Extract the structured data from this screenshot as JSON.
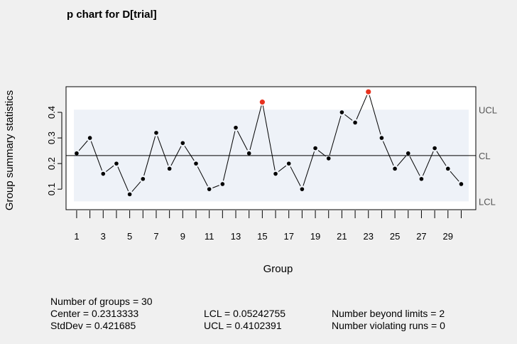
{
  "chart_data": {
    "type": "line",
    "title": "p chart for D[trial]",
    "xlabel": "Group",
    "ylabel": "Group summary statistics",
    "x": [
      1,
      2,
      3,
      4,
      5,
      6,
      7,
      8,
      9,
      10,
      11,
      12,
      13,
      14,
      15,
      16,
      17,
      18,
      19,
      20,
      21,
      22,
      23,
      24,
      25,
      26,
      27,
      28,
      29,
      30
    ],
    "values": [
      0.24,
      0.3,
      0.16,
      0.2,
      0.08,
      0.14,
      0.32,
      0.18,
      0.28,
      0.2,
      0.1,
      0.12,
      0.34,
      0.24,
      0.44,
      0.16,
      0.2,
      0.1,
      0.26,
      0.22,
      0.4,
      0.36,
      0.48,
      0.3,
      0.18,
      0.24,
      0.14,
      0.26,
      0.18,
      0.12
    ],
    "out_of_limits_groups": [
      15,
      23
    ],
    "center": 0.2313333,
    "ucl": 0.4102391,
    "lcl": 0.05242755,
    "ylim": [
      0.02,
      0.5
    ],
    "xlim": [
      0.2,
      31.1
    ],
    "yticks": [
      "0.1",
      "0.2",
      "0.3",
      "0.4"
    ],
    "ytick_values": [
      0.1,
      0.2,
      0.3,
      0.4
    ],
    "xtick_labels": [
      "1",
      "3",
      "5",
      "7",
      "9",
      "11",
      "13",
      "15",
      "17",
      "19",
      "21",
      "23",
      "25",
      "27",
      "29"
    ],
    "xtick_values": [
      1,
      3,
      5,
      7,
      9,
      11,
      13,
      15,
      17,
      19,
      21,
      23,
      25,
      27,
      29
    ],
    "limit_labels": {
      "ucl": "UCL",
      "cl": "CL",
      "lcl": "LCL"
    },
    "colors": {
      "point": "#000000",
      "violation": "#e8321e",
      "band": "#eef2f8",
      "panel": "#ffffff"
    }
  },
  "stats": {
    "groups": "Number of groups = 30",
    "center": "Center = 0.2313333",
    "stddev": "StdDev = 0.421685",
    "lcl": "LCL = 0.05242755",
    "ucl": "UCL = 0.4102391",
    "beyond": "Number beyond limits = 2",
    "runs": "Number violating runs = 0"
  }
}
